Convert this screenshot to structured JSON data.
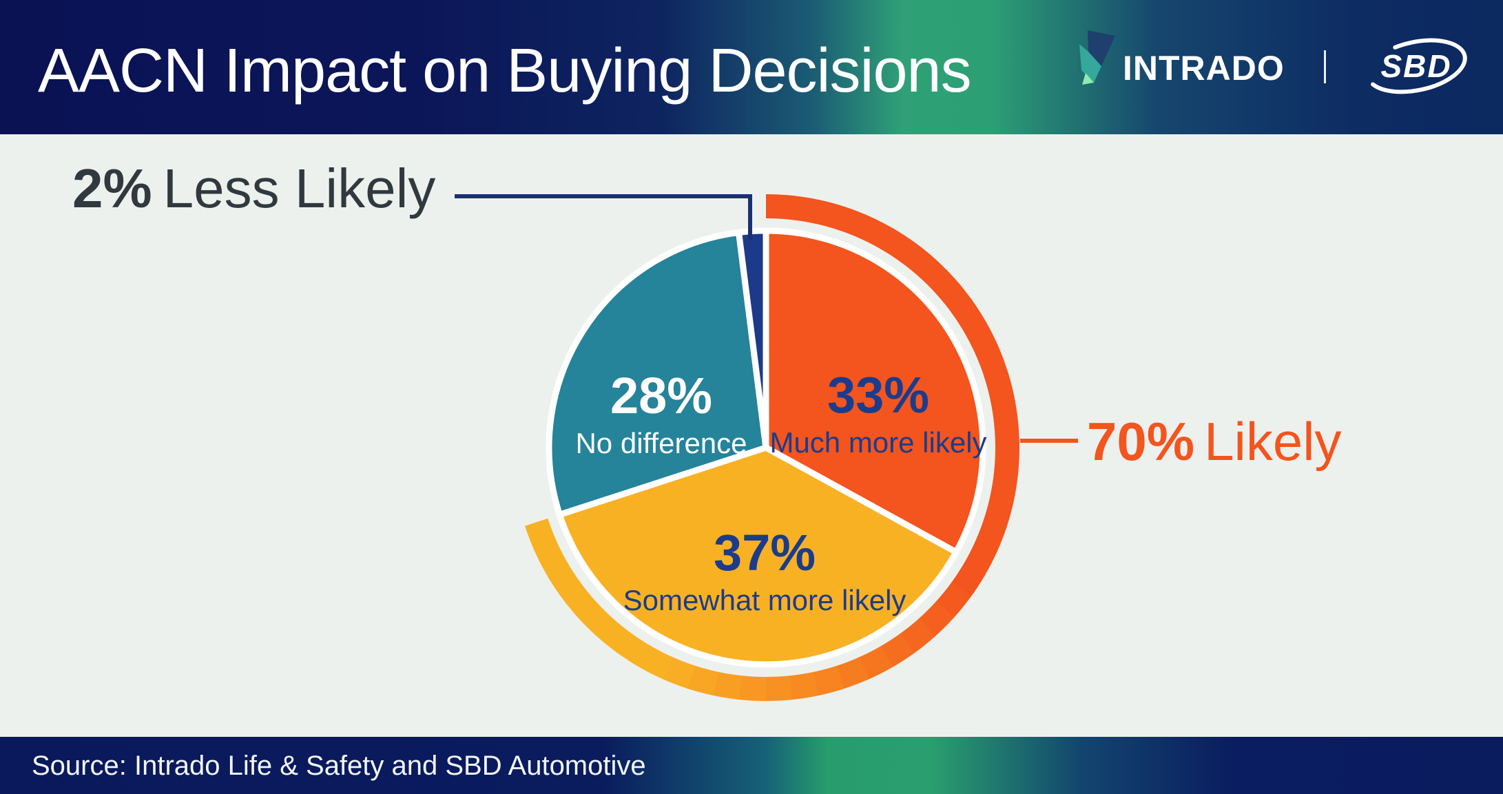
{
  "header": {
    "title": "AACN Impact on Buying Decisions",
    "brand": {
      "intrado_wordmark": "INTRADO",
      "sbd_wordmark": "SBD"
    }
  },
  "chart_data": {
    "type": "pie",
    "title": "AACN Impact on Buying Decisions",
    "direction": "clockwise",
    "start_angle_deg": 0,
    "segments": [
      {
        "label": "Much more likely",
        "value_pct": 33,
        "display": "33%",
        "color": "#F4541D",
        "label_color": "#1B3C8C"
      },
      {
        "label": "Somewhat more likely",
        "value_pct": 37,
        "display": "37%",
        "color": "#F9B124",
        "label_color": "#1B3C8C"
      },
      {
        "label": "No difference",
        "value_pct": 28,
        "display": "28%",
        "color": "#25839A",
        "label_color": "#FFFFFF"
      },
      {
        "label": "Less Likely",
        "value_pct": 2,
        "display": "2%",
        "color": "#1C3A87",
        "label_color": null
      }
    ],
    "outer_arc": {
      "covers_pct": 70,
      "from_deg": 0,
      "to_deg": 252,
      "color_start": "#F4541D",
      "color_end": "#F9B124"
    },
    "callouts": [
      {
        "value": "2%",
        "label": "Less Likely",
        "text_color": "#30393E",
        "line_color": "#1A3170"
      },
      {
        "value": "70%",
        "label": "Likely",
        "text_color": "#F4541D",
        "line_color": "#F4541D"
      }
    ]
  },
  "footer": {
    "source": "Source: Intrado Life & Safety and SBD Automotive"
  },
  "palette": {
    "background": "#EDF1EE",
    "header_navy": "#0A1254",
    "header_green": "#2EA076",
    "footer_navy": "#0A195C",
    "footer_green": "#289C6C",
    "white": "#FFFFFF"
  }
}
